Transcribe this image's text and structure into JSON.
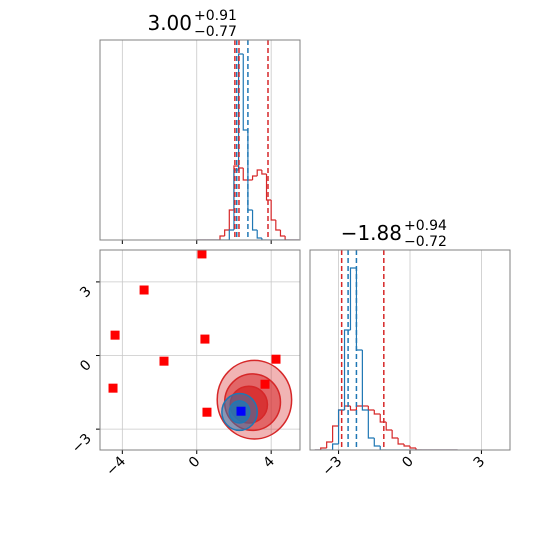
{
  "chart_data": [
    {
      "type": "histogram",
      "title": {
        "value": "3.00",
        "upper": "+0.91",
        "lower": "−0.77"
      },
      "bins": [
        0,
        0.25,
        0.5,
        0.75,
        1,
        1.25,
        1.5,
        1.75,
        2,
        2.25,
        2.5,
        2.75,
        3,
        3.25,
        3.5,
        3.75,
        4,
        4.25,
        4.5,
        4.75,
        5,
        5.25,
        5.5
      ],
      "series": [
        {
          "color": "#d62728",
          "values": [
            0,
            0,
            0,
            0,
            0,
            0.02,
            0.05,
            0.15,
            0.37,
            0.36,
            0.3,
            0.3,
            0.32,
            0.35,
            0.33,
            0.2,
            0.1,
            0.05,
            0.02,
            0,
            0,
            0
          ]
        },
        {
          "color": "#1f77b4",
          "values": [
            0,
            0,
            0,
            0,
            0,
            0,
            0,
            0.05,
            0.35,
            0.93,
            0.55,
            0.15,
            0.05,
            0.01,
            0,
            0,
            0,
            0,
            0,
            0,
            0,
            0
          ]
        }
      ],
      "vlines": [
        {
          "color": "#d62728",
          "values": [
            2.05,
            2.27,
            3.83
          ]
        },
        {
          "color": "#1f77b4",
          "values": [
            2.15,
            2.75
          ]
        }
      ],
      "xlim": [
        -5.2,
        5.55
      ],
      "xticks": [
        {
          "value": -4,
          "label": "−4"
        },
        0,
        4
      ],
      "ylim": [
        0,
        1
      ],
      "grid": true
    },
    {
      "type": "scatter",
      "contours": [
        {
          "color": "#d62728",
          "opacity": 0.35,
          "cx": 3.1,
          "cy": -1.8,
          "rx": 2.0,
          "ry": 1.6
        },
        {
          "color": "#d62728",
          "opacity": 0.55,
          "cx": 3.0,
          "cy": -1.9,
          "rx": 1.5,
          "ry": 1.15
        },
        {
          "color": "#d62728",
          "opacity": 0.8,
          "cx": 2.8,
          "cy": -2.0,
          "rx": 1.0,
          "ry": 0.75
        },
        {
          "color": "#1f77b4",
          "opacity": 0.5,
          "cx": 2.3,
          "cy": -2.3,
          "rx": 0.95,
          "ry": 0.75
        },
        {
          "color": "#1f77b4",
          "opacity": 0.8,
          "cx": 2.3,
          "cy": -2.3,
          "rx": 0.55,
          "ry": 0.45
        }
      ],
      "series": [
        {
          "color": "#ff0000",
          "x": [
            -4.39,
            -2.83,
            -1.76,
            0.28,
            0.44,
            -4.5,
            0.55,
            3.67,
            4.26
          ],
          "values": [
            0.83,
            2.67,
            -0.23,
            4.14,
            0.67,
            -1.33,
            -2.31,
            -1.17,
            -0.15
          ]
        },
        {
          "color": "#0000ff",
          "x": [
            2.38
          ],
          "values": [
            -2.27
          ]
        }
      ],
      "xlim": [
        -5.2,
        5.55
      ],
      "xticks": [
        {
          "value": -4,
          "label": "−4"
        },
        0,
        4
      ],
      "ylim": [
        -3.85,
        4.3
      ],
      "yticks": [
        {
          "value": -3,
          "label": "−3"
        },
        0,
        3
      ],
      "grid": true
    },
    {
      "type": "histogram",
      "title": {
        "value": "−1.88",
        "upper": "+0.94",
        "lower": "−0.72"
      },
      "bins": [
        -4,
        -3.75,
        -3.5,
        -3.25,
        -3,
        -2.75,
        -2.5,
        -2.25,
        -2,
        -1.75,
        -1.5,
        -1.25,
        -1,
        -0.75,
        -0.5,
        -0.25,
        0,
        0.25,
        0.5,
        0.75,
        1,
        1.25,
        1.5,
        1.75,
        2
      ],
      "series": [
        {
          "color": "#d62728",
          "values": [
            0,
            0.01,
            0.04,
            0.12,
            0.2,
            0.22,
            0.2,
            0.22,
            0.22,
            0.2,
            0.18,
            0.14,
            0.1,
            0.06,
            0.03,
            0.02,
            0.01,
            0,
            0,
            0,
            0,
            0,
            0,
            0
          ]
        },
        {
          "color": "#1f77b4",
          "values": [
            0,
            0,
            0,
            0.03,
            0.2,
            0.6,
            0.91,
            0.5,
            0.2,
            0.06,
            0.02,
            0,
            0,
            0,
            0,
            0,
            0,
            0,
            0,
            0,
            0,
            0,
            0,
            0
          ]
        }
      ],
      "vlines": [
        {
          "color": "#d62728",
          "values": [
            -2.87,
            -1.1
          ]
        },
        {
          "color": "#1f77b4",
          "values": [
            -2.6,
            -2.25
          ]
        }
      ],
      "xlim": [
        -4.2,
        4.2
      ],
      "xticks": [
        {
          "value": -3,
          "label": "−3"
        },
        0,
        3
      ],
      "ylim": [
        0,
        1
      ],
      "grid": true
    }
  ]
}
